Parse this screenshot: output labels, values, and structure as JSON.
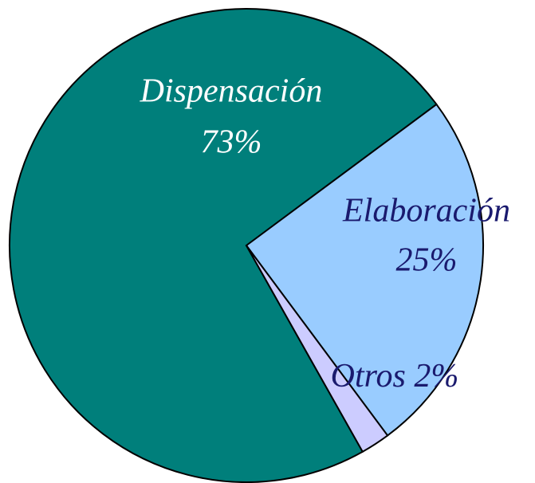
{
  "chart_data": {
    "type": "pie",
    "categories": [
      "Dispensación",
      "Elaboración",
      "Otros"
    ],
    "values": [
      73,
      25,
      2
    ],
    "value_labels": [
      "73%",
      "25%",
      "2%"
    ],
    "colors": [
      "#007f7b",
      "#99ccff",
      "#ccccff"
    ],
    "label_colors": [
      "#ffffff",
      "#1a1a6e",
      "#1a1a6e"
    ]
  }
}
